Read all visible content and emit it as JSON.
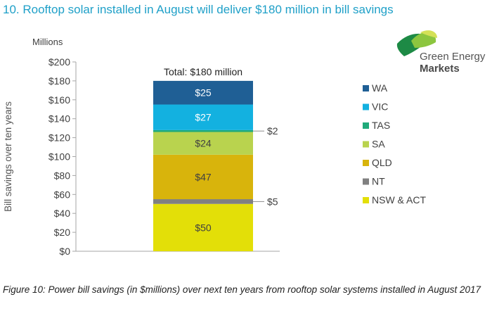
{
  "title": "10. Rooftop solar installed in August will deliver $180 million in bill savings",
  "logo": {
    "line1": "Green Energy",
    "line2": "Markets"
  },
  "caption": "Figure 10: Power bill savings (in $millions) over next ten years from rooftop solar systems installed in August 2017",
  "colors": {
    "title": "#1fa0c8",
    "WA": "#1f5f95",
    "VIC": "#13b1e0",
    "TAS": "#1faa7a",
    "SA": "#b9d34e",
    "QLD": "#d8b40c",
    "NT": "#808080",
    "NSW & ACT": "#e3df08"
  },
  "chart_data": {
    "type": "bar",
    "stacked": true,
    "categories": [
      ""
    ],
    "unit_label": "Millions",
    "ylabel": "Bill savings over ten years",
    "ylim": [
      0,
      200
    ],
    "yticks": [
      "$0",
      "$20",
      "$40",
      "$60",
      "$80",
      "$100",
      "$120",
      "$140",
      "$160",
      "$180",
      "$200"
    ],
    "ytick_values": [
      0,
      20,
      40,
      60,
      80,
      100,
      120,
      140,
      160,
      180,
      200
    ],
    "total_label": "Total: $180 million",
    "series": [
      {
        "name": "NSW & ACT",
        "values": [
          50
        ],
        "label": "$50"
      },
      {
        "name": "NT",
        "values": [
          5
        ],
        "label": "$5"
      },
      {
        "name": "QLD",
        "values": [
          47
        ],
        "label": "$47"
      },
      {
        "name": "SA",
        "values": [
          24
        ],
        "label": "$24"
      },
      {
        "name": "TAS",
        "values": [
          2
        ],
        "label": "$2"
      },
      {
        "name": "VIC",
        "values": [
          27
        ],
        "label": "$27"
      },
      {
        "name": "WA",
        "values": [
          25
        ],
        "label": "$25"
      }
    ],
    "legend_order": [
      "WA",
      "VIC",
      "TAS",
      "SA",
      "QLD",
      "NT",
      "NSW & ACT"
    ],
    "legend_position": "right",
    "grid": false
  }
}
